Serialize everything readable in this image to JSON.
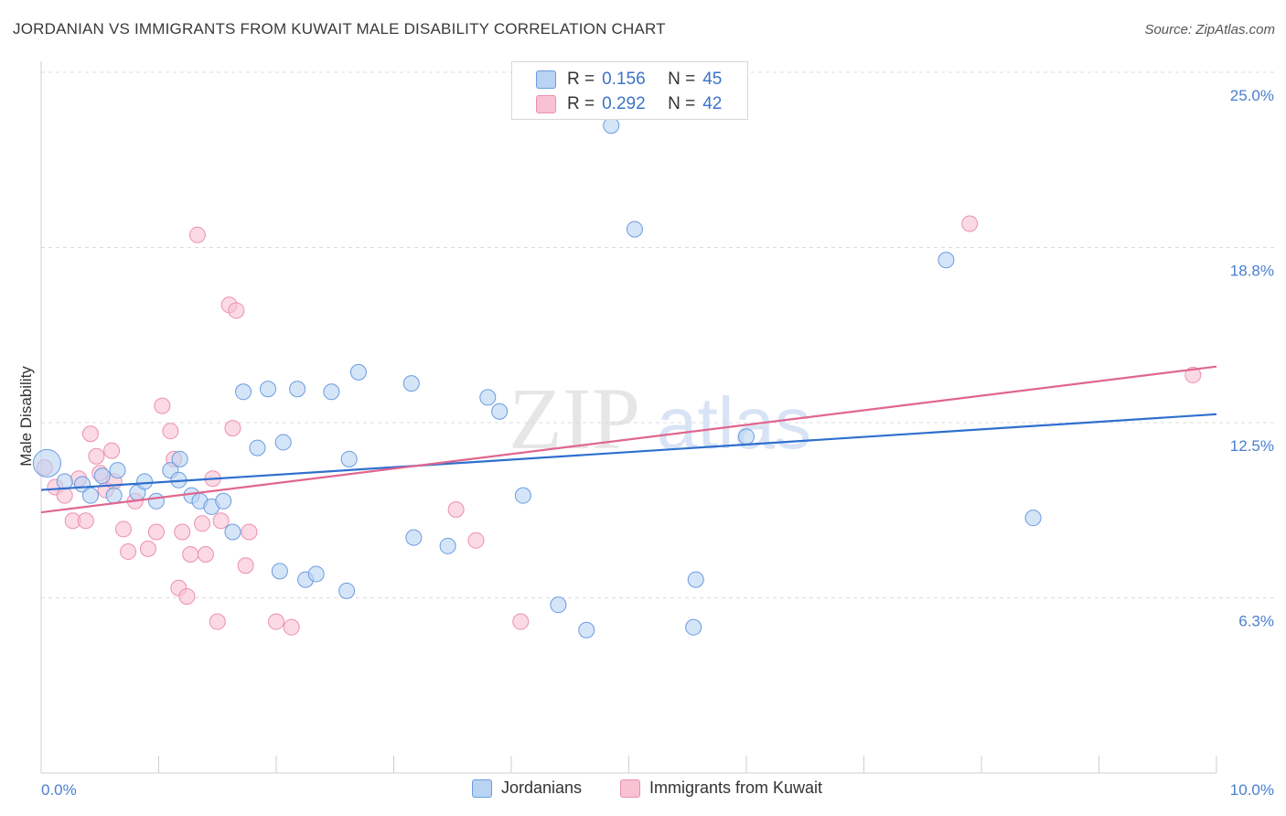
{
  "title": "JORDANIAN VS IMMIGRANTS FROM KUWAIT MALE DISABILITY CORRELATION CHART",
  "source": "Source: ZipAtlas.com",
  "watermark": {
    "zip": "ZIP",
    "atlas": "atlas"
  },
  "legend": {
    "r_label": "R =",
    "n_label": "N =",
    "rows": [
      {
        "r": "0.156",
        "n": "45"
      },
      {
        "r": "0.292",
        "n": "42"
      }
    ]
  },
  "colors": {
    "blue_fill": "#b9d3f3",
    "blue_stroke": "#6a9be0",
    "blue_line": "#2f6fce",
    "pink_fill": "#f8c2d3",
    "pink_stroke": "#ec90ad",
    "pink_line": "#e0668f",
    "tick_text": "#4a7fd0"
  },
  "chart_data": {
    "type": "scatter",
    "title": "JORDANIAN VS IMMIGRANTS FROM KUWAIT MALE DISABILITY CORRELATION CHART",
    "xlabel": "",
    "ylabel": "Male Disability",
    "xlim": [
      0,
      10
    ],
    "ylim": [
      0,
      25
    ],
    "x_tick_labels": [
      "0.0%",
      "10.0%"
    ],
    "y_ticks": [
      6.25,
      12.5,
      18.75,
      25.0
    ],
    "y_tick_labels": [
      "6.3%",
      "12.5%",
      "18.8%",
      "25.0%"
    ],
    "grid": true,
    "legend_position": "top-center",
    "series": [
      {
        "name": "Jordanians",
        "r": 0.156,
        "n": 45,
        "trend": [
          [
            0,
            10.1
          ],
          [
            10,
            12.8
          ]
        ],
        "points": [
          [
            0.05,
            11.05
          ],
          [
            0.2,
            10.4
          ],
          [
            0.35,
            10.3
          ],
          [
            0.42,
            9.9
          ],
          [
            0.52,
            10.6
          ],
          [
            0.62,
            9.9
          ],
          [
            0.65,
            10.8
          ],
          [
            0.82,
            10.0
          ],
          [
            0.88,
            10.4
          ],
          [
            0.98,
            9.7
          ],
          [
            1.1,
            10.8
          ],
          [
            1.18,
            11.2
          ],
          [
            1.28,
            9.9
          ],
          [
            1.35,
            9.7
          ],
          [
            1.45,
            9.5
          ],
          [
            1.55,
            9.7
          ],
          [
            1.63,
            8.6
          ],
          [
            1.72,
            13.6
          ],
          [
            1.84,
            11.6
          ],
          [
            1.93,
            13.7
          ],
          [
            2.06,
            11.8
          ],
          [
            2.18,
            13.7
          ],
          [
            2.03,
            7.2
          ],
          [
            2.25,
            6.9
          ],
          [
            2.34,
            7.1
          ],
          [
            2.47,
            13.6
          ],
          [
            2.6,
            6.5
          ],
          [
            2.62,
            11.2
          ],
          [
            2.7,
            14.3
          ],
          [
            3.15,
            13.9
          ],
          [
            3.17,
            8.4
          ],
          [
            3.46,
            8.1
          ],
          [
            3.8,
            13.4
          ],
          [
            3.9,
            12.9
          ],
          [
            4.1,
            9.9
          ],
          [
            4.4,
            6.0
          ],
          [
            4.64,
            5.1
          ],
          [
            4.85,
            23.1
          ],
          [
            5.05,
            19.4
          ],
          [
            5.55,
            5.2
          ],
          [
            5.57,
            6.9
          ],
          [
            6.0,
            12.0
          ],
          [
            7.7,
            18.3
          ],
          [
            8.44,
            9.1
          ],
          [
            1.17,
            10.45
          ]
        ]
      },
      {
        "name": "Immigrants from Kuwait",
        "r": 0.292,
        "n": 42,
        "trend": [
          [
            0,
            9.3
          ],
          [
            10,
            14.5
          ]
        ],
        "points": [
          [
            0.03,
            10.9
          ],
          [
            0.12,
            10.2
          ],
          [
            0.2,
            9.9
          ],
          [
            0.27,
            9.0
          ],
          [
            0.32,
            10.5
          ],
          [
            0.38,
            9.0
          ],
          [
            0.42,
            12.1
          ],
          [
            0.47,
            11.3
          ],
          [
            0.5,
            10.7
          ],
          [
            0.55,
            10.1
          ],
          [
            0.62,
            10.4
          ],
          [
            0.7,
            8.7
          ],
          [
            0.74,
            7.9
          ],
          [
            0.8,
            9.7
          ],
          [
            0.91,
            8.0
          ],
          [
            0.98,
            8.6
          ],
          [
            1.03,
            13.1
          ],
          [
            1.13,
            11.2
          ],
          [
            1.17,
            6.6
          ],
          [
            1.2,
            8.6
          ],
          [
            1.24,
            6.3
          ],
          [
            1.27,
            7.8
          ],
          [
            1.33,
            19.2
          ],
          [
            1.37,
            8.9
          ],
          [
            1.4,
            7.8
          ],
          [
            1.46,
            10.5
          ],
          [
            1.5,
            5.4
          ],
          [
            1.53,
            9.0
          ],
          [
            1.6,
            16.7
          ],
          [
            1.63,
            12.3
          ],
          [
            1.66,
            16.5
          ],
          [
            1.74,
            7.4
          ],
          [
            1.77,
            8.6
          ],
          [
            2.0,
            5.4
          ],
          [
            2.13,
            5.2
          ],
          [
            3.53,
            9.4
          ],
          [
            3.7,
            8.3
          ],
          [
            4.08,
            5.4
          ],
          [
            7.9,
            19.6
          ],
          [
            9.8,
            14.2
          ],
          [
            0.6,
            11.5
          ],
          [
            1.1,
            12.2
          ]
        ]
      }
    ]
  }
}
